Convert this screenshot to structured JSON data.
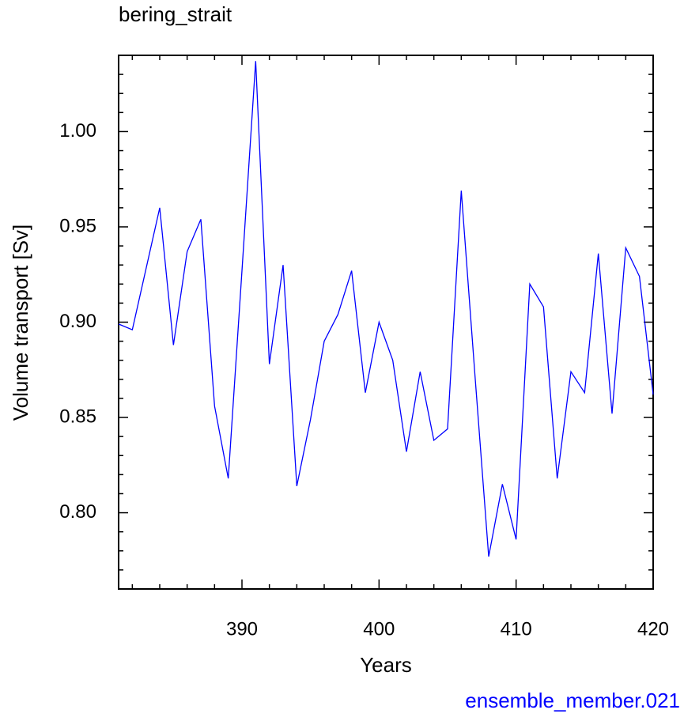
{
  "chart_data": {
    "type": "line",
    "title": "bering_strait",
    "x_label": "Years",
    "y_label": "Volume transport [Sv]",
    "annotation": "ensemble_member.021",
    "x": [
      381,
      382,
      383,
      384,
      385,
      386,
      387,
      388,
      389,
      390,
      391,
      392,
      393,
      394,
      395,
      396,
      397,
      398,
      399,
      400,
      401,
      402,
      403,
      404,
      405,
      406,
      407,
      408,
      409,
      410,
      411,
      412,
      413,
      414,
      415,
      416,
      417,
      418,
      419,
      420
    ],
    "series": [
      {
        "name": "bering_strait",
        "color": "#0000ff",
        "values": [
          0.899,
          0.896,
          0.928,
          0.96,
          0.888,
          0.937,
          0.954,
          0.856,
          0.818,
          0.927,
          1.037,
          0.878,
          0.93,
          0.814,
          0.849,
          0.89,
          0.904,
          0.927,
          0.863,
          0.9,
          0.88,
          0.832,
          0.874,
          0.838,
          0.844,
          0.969,
          0.872,
          0.777,
          0.815,
          0.786,
          0.92,
          0.908,
          0.818,
          0.874,
          0.863,
          0.936,
          0.852,
          0.939,
          0.924,
          0.862
        ]
      }
    ],
    "xlim": [
      381,
      420
    ],
    "ylim": [
      0.76,
      1.04
    ],
    "xticks": [
      390,
      400,
      410,
      420
    ],
    "yticks": [
      {
        "value": 0.8,
        "label": "0.80"
      },
      0.85,
      {
        "value": 0.9,
        "label": "0.90"
      },
      0.95,
      {
        "value": 1.0,
        "label": "1.00"
      }
    ],
    "xminorticks": [
      382,
      384,
      386,
      388,
      392,
      394,
      396,
      398,
      402,
      404,
      406,
      408,
      412,
      414,
      416,
      418
    ],
    "yminorticks": [
      0.77,
      0.78,
      0.79,
      0.81,
      0.82,
      0.83,
      0.84,
      0.86,
      0.87,
      0.88,
      0.89,
      0.91,
      0.92,
      0.93,
      0.94,
      0.96,
      0.97,
      0.98,
      0.99,
      1.01,
      1.02,
      1.03
    ]
  }
}
